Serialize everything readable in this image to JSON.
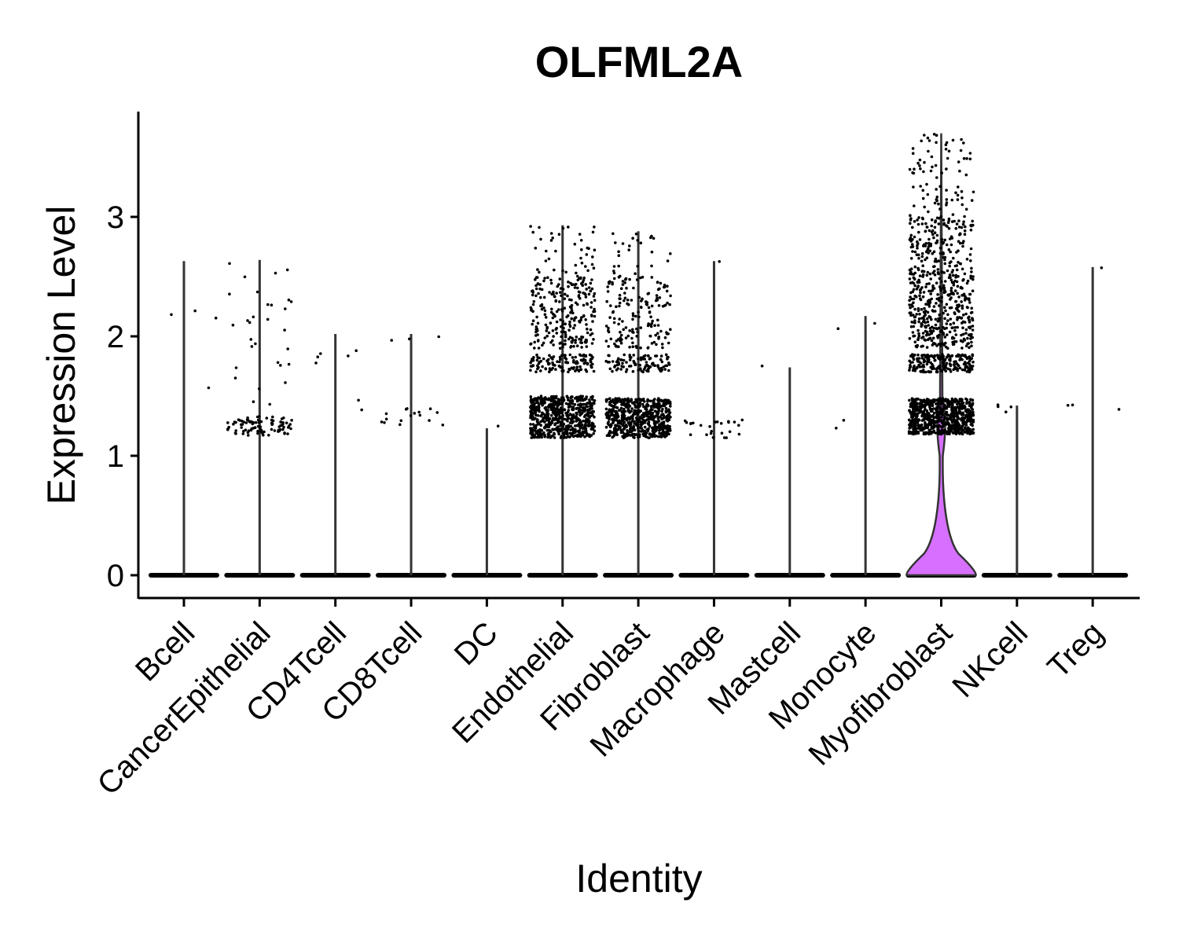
{
  "chart_data": {
    "type": "violin",
    "title": "OLFML2A",
    "xlabel": "Identity",
    "ylabel": "Expression Level",
    "ylim": [
      -0.18,
      3.9
    ],
    "yticks": [
      0,
      1,
      2,
      3
    ],
    "grid": false,
    "legend": "none",
    "categories": [
      "Bcell",
      "CancerEpithelial",
      "CD4Tcell",
      "CD8Tcell",
      "DC",
      "Endothelial",
      "Fibroblast",
      "Macrophage",
      "Mastcell",
      "Monocyte",
      "Myofibroblast",
      "NKcell",
      "Treg"
    ],
    "series": [
      {
        "max": 2.63,
        "clusters": [
          {
            "lo": 1.35,
            "hi": 2.62,
            "n": 4
          }
        ]
      },
      {
        "max": 2.64,
        "clusters": [
          {
            "lo": 1.17,
            "hi": 1.33,
            "n": 90
          },
          {
            "lo": 1.4,
            "hi": 2.64,
            "n": 30
          }
        ]
      },
      {
        "max": 2.02,
        "clusters": [
          {
            "lo": 1.2,
            "hi": 2.02,
            "n": 7
          }
        ]
      },
      {
        "max": 2.02,
        "clusters": [
          {
            "lo": 1.25,
            "hi": 1.43,
            "n": 16
          },
          {
            "lo": 1.95,
            "hi": 2.02,
            "n": 3
          }
        ]
      },
      {
        "max": 1.23,
        "clusters": [
          {
            "lo": 1.2,
            "hi": 1.25,
            "n": 1
          }
        ]
      },
      {
        "max": 2.93,
        "clusters": [
          {
            "lo": 1.15,
            "hi": 1.5,
            "n": 650
          },
          {
            "lo": 1.7,
            "hi": 1.85,
            "n": 120
          },
          {
            "lo": 1.9,
            "hi": 2.5,
            "n": 240
          },
          {
            "lo": 2.5,
            "hi": 2.93,
            "n": 40
          }
        ]
      },
      {
        "max": 2.88,
        "clusters": [
          {
            "lo": 1.15,
            "hi": 1.48,
            "n": 600
          },
          {
            "lo": 1.7,
            "hi": 1.85,
            "n": 100
          },
          {
            "lo": 1.9,
            "hi": 2.5,
            "n": 160
          },
          {
            "lo": 2.5,
            "hi": 2.88,
            "n": 25
          }
        ]
      },
      {
        "max": 2.63,
        "clusters": [
          {
            "lo": 1.15,
            "hi": 1.3,
            "n": 25
          },
          {
            "lo": 2.6,
            "hi": 2.63,
            "n": 1
          }
        ]
      },
      {
        "max": 1.74,
        "clusters": [
          {
            "lo": 1.7,
            "hi": 1.76,
            "n": 1
          }
        ]
      },
      {
        "max": 2.17,
        "clusters": [
          {
            "lo": 1.18,
            "hi": 1.3,
            "n": 2
          },
          {
            "lo": 1.98,
            "hi": 2.17,
            "n": 2
          }
        ]
      },
      {
        "max": 3.7,
        "violin": true,
        "clusters": [
          {
            "lo": 1.18,
            "hi": 1.48,
            "n": 700
          },
          {
            "lo": 1.7,
            "hi": 1.85,
            "n": 200
          },
          {
            "lo": 1.9,
            "hi": 2.6,
            "n": 400
          },
          {
            "lo": 2.6,
            "hi": 3.0,
            "n": 150
          },
          {
            "lo": 3.0,
            "hi": 3.7,
            "n": 80
          }
        ]
      },
      {
        "max": 1.42,
        "clusters": [
          {
            "lo": 1.32,
            "hi": 1.43,
            "n": 4
          }
        ]
      },
      {
        "max": 2.58,
        "clusters": [
          {
            "lo": 1.38,
            "hi": 1.43,
            "n": 3
          },
          {
            "lo": 2.56,
            "hi": 2.58,
            "n": 1
          }
        ]
      }
    ],
    "colors": {
      "violin_line": "#333333",
      "violin_fill": "#d770ff",
      "point": "#000000"
    }
  }
}
